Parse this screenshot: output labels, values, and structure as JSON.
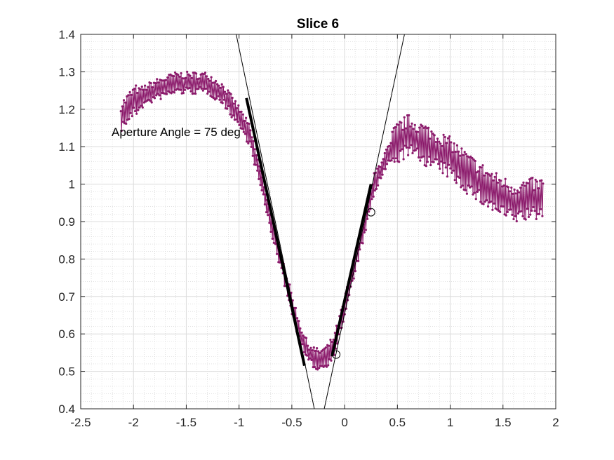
{
  "chart_data": {
    "type": "line",
    "title": "Slice 6",
    "xlabel": "",
    "ylabel": "",
    "xlim": [
      -2.5,
      2
    ],
    "ylim": [
      0.4,
      1.4
    ],
    "x_ticks": [
      -2.5,
      -2,
      -1.5,
      -1,
      -0.5,
      0,
      0.5,
      1,
      1.5,
      2
    ],
    "x_tick_labels": [
      "-2.5",
      "-2",
      "-1.5",
      "-1",
      "-0.5",
      "0",
      "0.5",
      "1",
      "1.5",
      "2"
    ],
    "y_ticks": [
      0.4,
      0.5,
      0.6,
      0.7,
      0.8,
      0.9,
      1,
      1.1,
      1.2,
      1.3,
      1.4
    ],
    "y_tick_labels": [
      "0.4",
      "0.5",
      "0.6",
      "0.7",
      "0.8",
      "0.9",
      "1",
      "1.1",
      "1.2",
      "1.3",
      "1.4"
    ],
    "grid": true,
    "minor_grid": true,
    "annotation": "Aperture Angle = 75 deg",
    "series": [
      {
        "name": "profile",
        "color": "#8b1a6b",
        "marker": "dot",
        "noise_amplitude": 0.03,
        "trend_x": [
          -2.12,
          -2.0,
          -1.8,
          -1.6,
          -1.45,
          -1.3,
          -1.15,
          -1.0,
          -0.9,
          -0.8,
          -0.7,
          -0.6,
          -0.5,
          -0.42,
          -0.35,
          -0.25,
          -0.17,
          -0.1,
          0.0,
          0.1,
          0.2,
          0.28,
          0.38,
          0.5,
          0.6,
          0.8,
          1.0,
          1.2,
          1.4,
          1.6,
          1.75,
          1.88
        ],
        "trend_y": [
          1.18,
          1.22,
          1.25,
          1.27,
          1.27,
          1.27,
          1.24,
          1.18,
          1.13,
          1.02,
          0.9,
          0.79,
          0.68,
          0.6,
          0.55,
          0.53,
          0.54,
          0.57,
          0.67,
          0.79,
          0.9,
          1.0,
          1.06,
          1.11,
          1.13,
          1.1,
          1.07,
          1.02,
          0.98,
          0.95,
          0.96,
          0.96
        ]
      },
      {
        "name": "left tangent line",
        "color": "#000000",
        "x": [
          -1.027,
          -0.287
        ],
        "y": [
          1.4,
          0.4
        ]
      },
      {
        "name": "right tangent line",
        "color": "#000000",
        "x": [
          -0.193,
          0.567
        ],
        "y": [
          0.4,
          1.4
        ]
      },
      {
        "name": "left fit segment",
        "color": "#000000",
        "x": [
          -0.93,
          -0.38
        ],
        "y": [
          1.23,
          0.515
        ]
      },
      {
        "name": "right fit segment",
        "color": "#000000",
        "x": [
          -0.12,
          0.25
        ],
        "y": [
          0.54,
          1.0
        ]
      },
      {
        "name": "fit endpoints",
        "color": "#000000",
        "marker": "circle",
        "x": [
          -0.08,
          0.25
        ],
        "y": [
          0.545,
          0.925
        ]
      }
    ]
  }
}
